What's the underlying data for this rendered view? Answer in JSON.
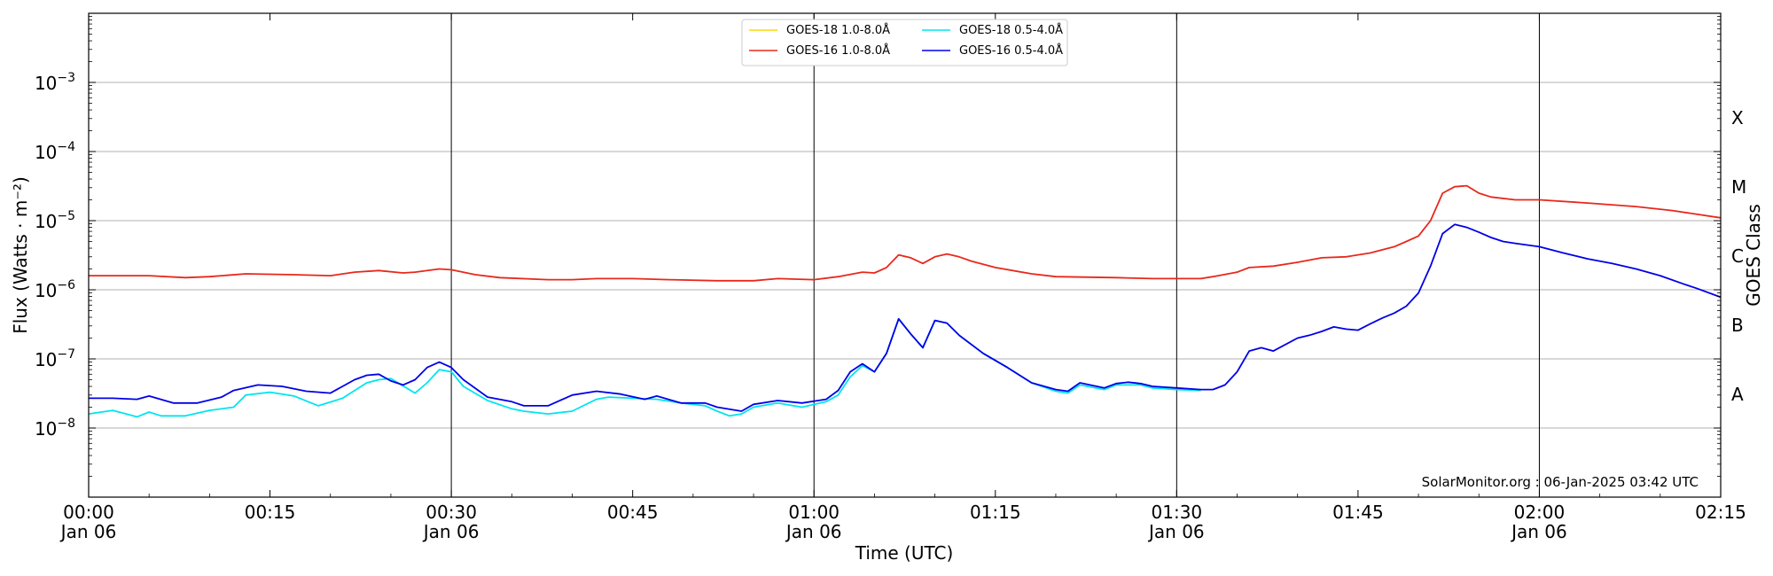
{
  "chart_data": {
    "type": "line",
    "xlabel": "Time (UTC)",
    "ylabel": "Flux (Watts · m⁻²)",
    "ylabel_right": "GOES Class",
    "yscale": "log",
    "ylim": [
      1e-09,
      0.01
    ],
    "xlim": [
      "00:00",
      "02:15"
    ],
    "x_ticks": [
      {
        "t": "00:00",
        "line1": "00:00",
        "line2": "Jan 06"
      },
      {
        "t": "00:15",
        "line1": "00:15",
        "line2": ""
      },
      {
        "t": "00:30",
        "line1": "00:30",
        "line2": "Jan 06"
      },
      {
        "t": "00:45",
        "line1": "00:45",
        "line2": ""
      },
      {
        "t": "01:00",
        "line1": "01:00",
        "line2": "Jan 06"
      },
      {
        "t": "01:15",
        "line1": "01:15",
        "line2": ""
      },
      {
        "t": "01:30",
        "line1": "01:30",
        "line2": "Jan 06"
      },
      {
        "t": "01:45",
        "line1": "01:45",
        "line2": ""
      },
      {
        "t": "02:00",
        "line1": "02:00",
        "line2": "Jan 06"
      },
      {
        "t": "02:15",
        "line1": "02:15",
        "line2": ""
      }
    ],
    "y_ticks": [
      {
        "exp": -8,
        "label": "10",
        "sup": "−8"
      },
      {
        "exp": -7,
        "label": "10",
        "sup": "−7"
      },
      {
        "exp": -6,
        "label": "10",
        "sup": "−6"
      },
      {
        "exp": -5,
        "label": "10",
        "sup": "−5"
      },
      {
        "exp": -4,
        "label": "10",
        "sup": "−4"
      },
      {
        "exp": -3,
        "label": "10",
        "sup": "−3"
      }
    ],
    "goes_classes": [
      {
        "label": "A",
        "exp": -7.5
      },
      {
        "label": "B",
        "exp": -6.5
      },
      {
        "label": "C",
        "exp": -5.5
      },
      {
        "label": "M",
        "exp": -4.5
      },
      {
        "label": "X",
        "exp": -3.5
      }
    ],
    "vertical_lines": [
      "00:30",
      "01:00",
      "01:30",
      "02:00"
    ],
    "grid": "horizontal",
    "legend_position": "top-center",
    "credit": "SolarMonitor.org : 06-Jan-2025 03:42 UTC",
    "series": [
      {
        "name": "GOES-18 1.0-8.0Å",
        "color": "#ffd700",
        "points": []
      },
      {
        "name": "GOES-16 1.0-8.0Å",
        "color": "#e8281b",
        "points": [
          [
            0,
            1.6e-06
          ],
          [
            5,
            1.6e-06
          ],
          [
            8,
            1.5e-06
          ],
          [
            10,
            1.55e-06
          ],
          [
            13,
            1.7e-06
          ],
          [
            17,
            1.65e-06
          ],
          [
            20,
            1.6e-06
          ],
          [
            22,
            1.8e-06
          ],
          [
            24,
            1.9e-06
          ],
          [
            26,
            1.75e-06
          ],
          [
            27,
            1.8e-06
          ],
          [
            29,
            2e-06
          ],
          [
            30,
            1.95e-06
          ],
          [
            32,
            1.65e-06
          ],
          [
            34,
            1.5e-06
          ],
          [
            38,
            1.4e-06
          ],
          [
            40,
            1.4e-06
          ],
          [
            42,
            1.45e-06
          ],
          [
            45,
            1.45e-06
          ],
          [
            48,
            1.4e-06
          ],
          [
            52,
            1.35e-06
          ],
          [
            55,
            1.35e-06
          ],
          [
            57,
            1.45e-06
          ],
          [
            60,
            1.4e-06
          ],
          [
            62,
            1.55e-06
          ],
          [
            64,
            1.8e-06
          ],
          [
            65,
            1.75e-06
          ],
          [
            66,
            2.1e-06
          ],
          [
            67,
            3.2e-06
          ],
          [
            68,
            2.9e-06
          ],
          [
            69,
            2.4e-06
          ],
          [
            70,
            3e-06
          ],
          [
            71,
            3.3e-06
          ],
          [
            72,
            3e-06
          ],
          [
            73,
            2.6e-06
          ],
          [
            75,
            2.1e-06
          ],
          [
            78,
            1.7e-06
          ],
          [
            80,
            1.55e-06
          ],
          [
            85,
            1.5e-06
          ],
          [
            88,
            1.45e-06
          ],
          [
            92,
            1.45e-06
          ],
          [
            93,
            1.55e-06
          ],
          [
            95,
            1.8e-06
          ],
          [
            96,
            2.1e-06
          ],
          [
            98,
            2.2e-06
          ],
          [
            100,
            2.5e-06
          ],
          [
            102,
            2.9e-06
          ],
          [
            104,
            3e-06
          ],
          [
            106,
            3.4e-06
          ],
          [
            108,
            4.2e-06
          ],
          [
            109,
            5e-06
          ],
          [
            110,
            6e-06
          ],
          [
            111,
            1e-05
          ],
          [
            112,
            2.5e-05
          ],
          [
            113,
            3.1e-05
          ],
          [
            114,
            3.2e-05
          ],
          [
            115,
            2.5e-05
          ],
          [
            116,
            2.2e-05
          ],
          [
            118,
            2e-05
          ],
          [
            120,
            2e-05
          ],
          [
            124,
            1.8e-05
          ],
          [
            128,
            1.6e-05
          ],
          [
            131,
            1.4e-05
          ],
          [
            135,
            1.1e-05
          ]
        ]
      },
      {
        "name": "GOES-18 0.5-4.0Å",
        "color": "#00e5ee",
        "points": [
          [
            0,
            1.6e-08
          ],
          [
            2,
            1.8e-08
          ],
          [
            4,
            1.45e-08
          ],
          [
            5,
            1.7e-08
          ],
          [
            6,
            1.5e-08
          ],
          [
            8,
            1.5e-08
          ],
          [
            10,
            1.8e-08
          ],
          [
            12,
            2e-08
          ],
          [
            13,
            3e-08
          ],
          [
            15,
            3.3e-08
          ],
          [
            17,
            2.9e-08
          ],
          [
            19,
            2.1e-08
          ],
          [
            21,
            2.7e-08
          ],
          [
            23,
            4.5e-08
          ],
          [
            24,
            5e-08
          ],
          [
            25,
            5.2e-08
          ],
          [
            27,
            3.2e-08
          ],
          [
            28,
            4.5e-08
          ],
          [
            29,
            7e-08
          ],
          [
            30,
            6.5e-08
          ],
          [
            31,
            4e-08
          ],
          [
            33,
            2.5e-08
          ],
          [
            35,
            1.9e-08
          ],
          [
            36,
            1.75e-08
          ],
          [
            38,
            1.6e-08
          ],
          [
            40,
            1.75e-08
          ],
          [
            42,
            2.6e-08
          ],
          [
            43,
            2.8e-08
          ],
          [
            45,
            2.7e-08
          ],
          [
            47,
            2.6e-08
          ],
          [
            49,
            2.3e-08
          ],
          [
            51,
            2.1e-08
          ],
          [
            52,
            1.75e-08
          ],
          [
            53,
            1.5e-08
          ],
          [
            54,
            1.6e-08
          ],
          [
            55,
            2e-08
          ],
          [
            57,
            2.3e-08
          ],
          [
            59,
            2e-08
          ],
          [
            61,
            2.4e-08
          ],
          [
            62,
            3e-08
          ],
          [
            63,
            5.5e-08
          ],
          [
            64,
            8e-08
          ],
          [
            65,
            6.5e-08
          ],
          [
            66,
            1.2e-07
          ],
          [
            67,
            3.8e-07
          ],
          [
            68,
            2.3e-07
          ],
          [
            69,
            1.45e-07
          ],
          [
            70,
            3.6e-07
          ],
          [
            71,
            3.3e-07
          ],
          [
            72,
            2.2e-07
          ],
          [
            74,
            1.2e-07
          ],
          [
            76,
            7.5e-08
          ],
          [
            78,
            4.5e-08
          ],
          [
            80,
            3.4e-08
          ],
          [
            81,
            3.2e-08
          ],
          [
            82,
            4.2e-08
          ],
          [
            84,
            3.6e-08
          ],
          [
            85,
            4.2e-08
          ],
          [
            87,
            4.2e-08
          ],
          [
            88,
            3.8e-08
          ],
          [
            90,
            3.6e-08
          ],
          [
            92,
            3.5e-08
          ]
        ]
      },
      {
        "name": "GOES-16 0.5-4.0Å",
        "color": "#0000e8",
        "points": [
          [
            0,
            2.7e-08
          ],
          [
            2,
            2.7e-08
          ],
          [
            4,
            2.6e-08
          ],
          [
            5,
            2.9e-08
          ],
          [
            7,
            2.3e-08
          ],
          [
            9,
            2.3e-08
          ],
          [
            11,
            2.8e-08
          ],
          [
            12,
            3.5e-08
          ],
          [
            14,
            4.2e-08
          ],
          [
            16,
            4e-08
          ],
          [
            18,
            3.4e-08
          ],
          [
            20,
            3.2e-08
          ],
          [
            22,
            5e-08
          ],
          [
            23,
            5.8e-08
          ],
          [
            24,
            6e-08
          ],
          [
            25,
            4.8e-08
          ],
          [
            26,
            4.2e-08
          ],
          [
            27,
            5e-08
          ],
          [
            28,
            7.5e-08
          ],
          [
            29,
            9e-08
          ],
          [
            30,
            7.5e-08
          ],
          [
            31,
            5e-08
          ],
          [
            33,
            2.8e-08
          ],
          [
            35,
            2.4e-08
          ],
          [
            36,
            2.1e-08
          ],
          [
            38,
            2.1e-08
          ],
          [
            40,
            3e-08
          ],
          [
            42,
            3.4e-08
          ],
          [
            44,
            3.1e-08
          ],
          [
            46,
            2.6e-08
          ],
          [
            47,
            2.9e-08
          ],
          [
            49,
            2.3e-08
          ],
          [
            51,
            2.3e-08
          ],
          [
            52,
            2e-08
          ],
          [
            54,
            1.75e-08
          ],
          [
            55,
            2.2e-08
          ],
          [
            57,
            2.5e-08
          ],
          [
            59,
            2.3e-08
          ],
          [
            61,
            2.6e-08
          ],
          [
            62,
            3.5e-08
          ],
          [
            63,
            6.5e-08
          ],
          [
            64,
            8.5e-08
          ],
          [
            65,
            6.5e-08
          ],
          [
            66,
            1.2e-07
          ],
          [
            67,
            3.8e-07
          ],
          [
            68,
            2.3e-07
          ],
          [
            69,
            1.45e-07
          ],
          [
            70,
            3.6e-07
          ],
          [
            71,
            3.3e-07
          ],
          [
            72,
            2.2e-07
          ],
          [
            74,
            1.2e-07
          ],
          [
            76,
            7.5e-08
          ],
          [
            78,
            4.5e-08
          ],
          [
            80,
            3.6e-08
          ],
          [
            81,
            3.4e-08
          ],
          [
            82,
            4.5e-08
          ],
          [
            84,
            3.8e-08
          ],
          [
            85,
            4.4e-08
          ],
          [
            86,
            4.6e-08
          ],
          [
            87,
            4.4e-08
          ],
          [
            88,
            4e-08
          ],
          [
            90,
            3.8e-08
          ],
          [
            92,
            3.6e-08
          ],
          [
            93,
            3.6e-08
          ],
          [
            94,
            4.2e-08
          ],
          [
            95,
            6.5e-08
          ],
          [
            96,
            1.3e-07
          ],
          [
            97,
            1.45e-07
          ],
          [
            98,
            1.3e-07
          ],
          [
            100,
            2e-07
          ],
          [
            101,
            2.2e-07
          ],
          [
            102,
            2.5e-07
          ],
          [
            103,
            2.9e-07
          ],
          [
            104,
            2.7e-07
          ],
          [
            105,
            2.6e-07
          ],
          [
            106,
            3.2e-07
          ],
          [
            107,
            3.9e-07
          ],
          [
            108,
            4.6e-07
          ],
          [
            109,
            5.8e-07
          ],
          [
            110,
            9e-07
          ],
          [
            111,
            2.2e-06
          ],
          [
            112,
            6.5e-06
          ],
          [
            113,
            8.8e-06
          ],
          [
            114,
            8e-06
          ],
          [
            115,
            6.8e-06
          ],
          [
            116,
            5.7e-06
          ],
          [
            117,
            5e-06
          ],
          [
            118,
            4.7e-06
          ],
          [
            120,
            4.2e-06
          ],
          [
            122,
            3.4e-06
          ],
          [
            124,
            2.8e-06
          ],
          [
            126,
            2.4e-06
          ],
          [
            128,
            2e-06
          ],
          [
            130,
            1.6e-06
          ],
          [
            132,
            1.2e-06
          ],
          [
            133,
            1.05e-06
          ],
          [
            135,
            7.8e-07
          ]
        ]
      }
    ]
  }
}
